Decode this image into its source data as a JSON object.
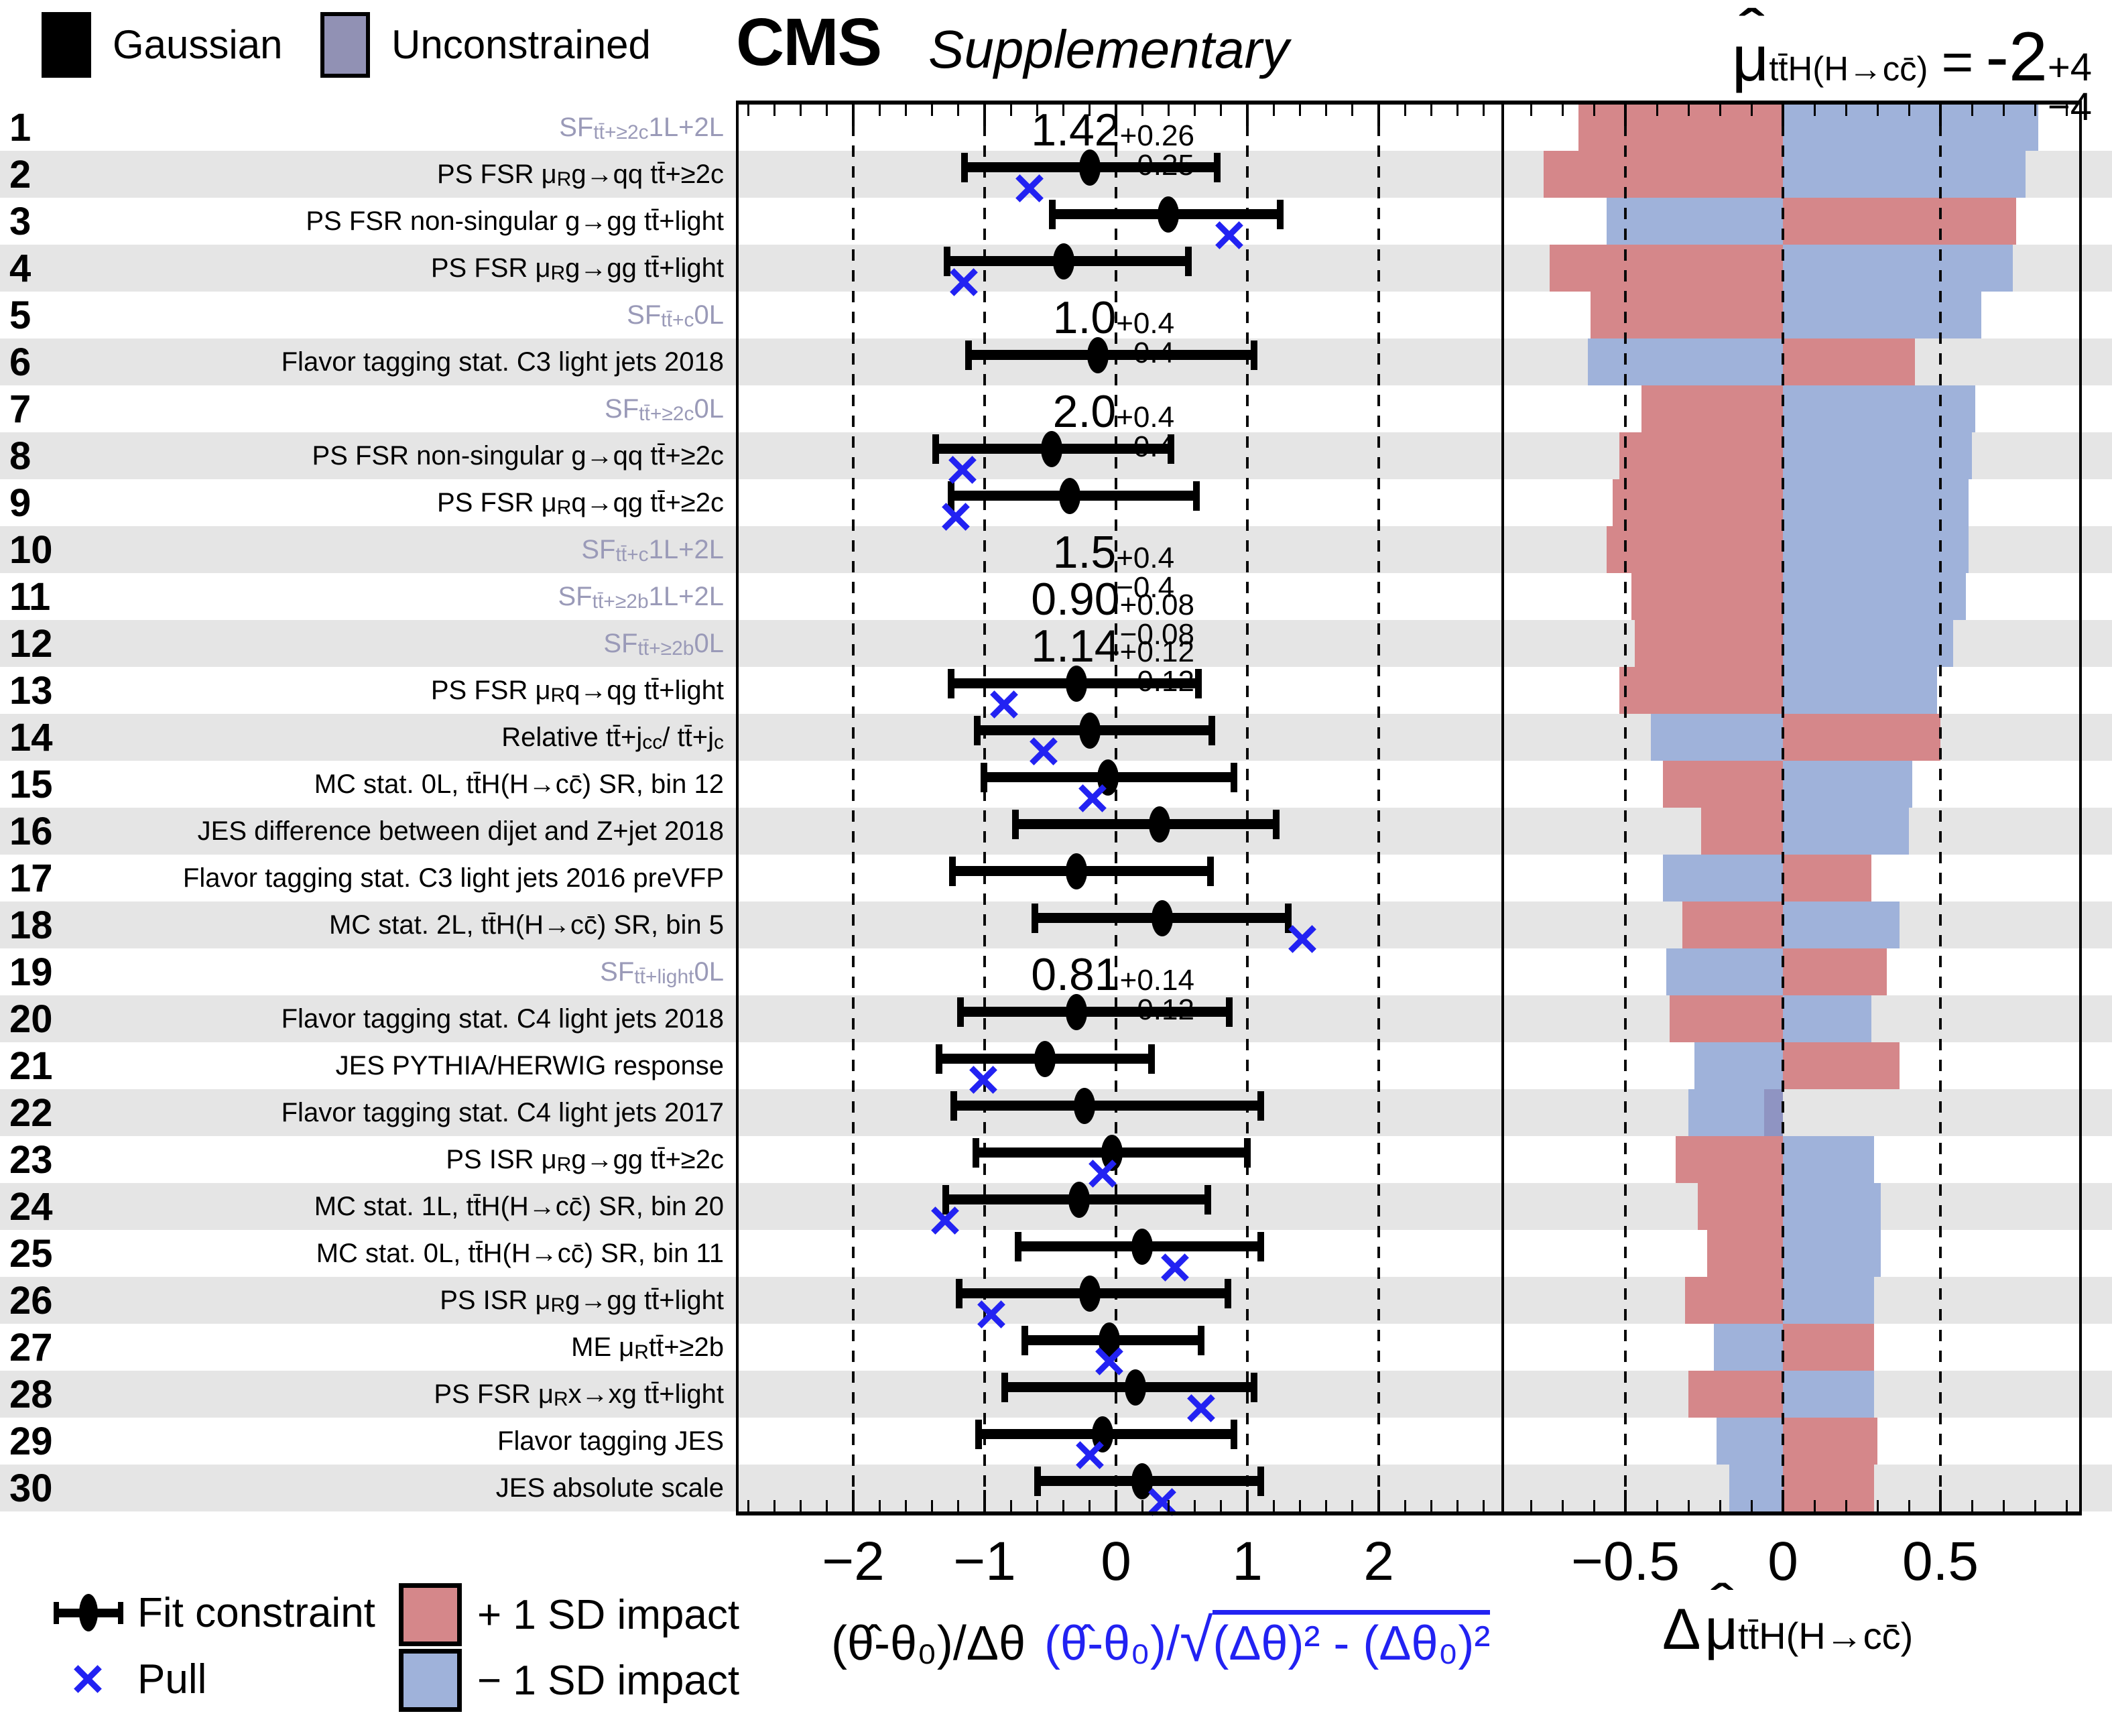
{
  "top_legend": [
    {
      "label": "Gaussian",
      "color": "#000000"
    },
    {
      "label": "Unconstrained",
      "color": "#9191b4"
    }
  ],
  "header": {
    "experiment": "CMS",
    "qualifier": "Supplementary"
  },
  "mu_result": {
    "mu": "μ",
    "subscript": "tt̄H(H→cc̄)",
    "equals": "=",
    "value": "-2",
    "err_up": "+4",
    "err_down": "−4"
  },
  "bottom_legend": {
    "fit_constraint": "Fit constraint",
    "pull": "Pull",
    "plus_impact": "+ 1 SD impact",
    "minus_impact": "− 1 SD impact"
  },
  "colors": {
    "plus_impact": "#d5878a",
    "minus_impact": "#9fb2da",
    "overlap_impact": "#8f94c2",
    "unconstrained": "#9191b4",
    "pull_marker": "#2222f2",
    "stripe": "#e5e5e5",
    "sf_label": "#9a9ab8"
  },
  "chart_data": {
    "type": "pulls-impacts",
    "title": "CMS Supplementary nuisance-parameter pulls and impacts for μ(ttH, H→cc) = -2 +4/-4",
    "pull_axis": {
      "label_black": "(θ̂-θ₀)/Δθ",
      "label_blue_pre": "(θ̂-θ₀)/",
      "label_blue_radicand": "(Δθ)² - (Δθ₀)²",
      "ticks": [
        -2,
        -1,
        0,
        1,
        2
      ],
      "minor_step": 0.2,
      "range": [
        -2.88,
        2.94
      ],
      "grid": "dashed"
    },
    "impact_axis": {
      "label": "Δμ̂ tt̄H(H→cc̄)",
      "ticks": [
        -0.5,
        0,
        0.5
      ],
      "tick_labels": [
        "−0.5",
        "0",
        "0.5"
      ],
      "minor_step": 0.1,
      "range": [
        -0.89,
        0.94
      ],
      "grid": "dashed"
    },
    "rows": [
      {
        "n": 1,
        "label_html": "SF <sub>tt̄+≥2c</sub> 1L+2L",
        "unconstrained": true,
        "sf": {
          "value": "1.42",
          "up": "+0.26",
          "down": "−0.25"
        },
        "pull": null,
        "impact": {
          "plus": -0.65,
          "minus": 0.81
        }
      },
      {
        "n": 2,
        "label_html": "PS FSR μ<sub>R</sub> g→qq tt̄+≥2c",
        "unconstrained": false,
        "sf": null,
        "pull": {
          "center": -0.2,
          "lo": -1.16,
          "hi": 0.77,
          "x": -0.66
        },
        "impact": {
          "plus": -0.76,
          "minus": 0.77
        }
      },
      {
        "n": 3,
        "label_html": "PS FSR non-singular g→gg tt̄+light",
        "unconstrained": false,
        "sf": null,
        "pull": {
          "center": 0.4,
          "lo": -0.49,
          "hi": 1.25,
          "x": 0.86
        },
        "impact": {
          "plus": 0.74,
          "minus": -0.56
        }
      },
      {
        "n": 4,
        "label_html": "PS FSR μ<sub>R</sub> g→gg tt̄+light",
        "unconstrained": false,
        "sf": null,
        "pull": {
          "center": -0.4,
          "lo": -1.29,
          "hi": 0.55,
          "x": -1.16
        },
        "impact": {
          "plus": -0.74,
          "minus": 0.73
        }
      },
      {
        "n": 5,
        "label_html": "SF <sub>tt̄+c</sub> 0L",
        "unconstrained": true,
        "sf": {
          "value": "1.0",
          "up": "+0.4",
          "down": "−0.4"
        },
        "pull": null,
        "impact": {
          "plus": -0.61,
          "minus": 0.63
        }
      },
      {
        "n": 6,
        "label_html": "Flavor tagging stat. C3 light jets 2018",
        "unconstrained": false,
        "sf": null,
        "pull": {
          "center": -0.14,
          "lo": -1.13,
          "hi": 1.05,
          "x": null
        },
        "impact": {
          "plus": 0.42,
          "minus": -0.62
        }
      },
      {
        "n": 7,
        "label_html": "SF <sub>tt̄+≥2c</sub> 0L",
        "unconstrained": true,
        "sf": {
          "value": "2.0",
          "up": "+0.4",
          "down": "−0.4"
        },
        "pull": null,
        "impact": {
          "plus": -0.45,
          "minus": 0.61
        }
      },
      {
        "n": 8,
        "label_html": "PS FSR non-singular g→qq tt̄+≥2c",
        "unconstrained": false,
        "sf": null,
        "pull": {
          "center": -0.49,
          "lo": -1.38,
          "hi": 0.42,
          "x": -1.17
        },
        "impact": {
          "plus": -0.52,
          "minus": 0.6
        }
      },
      {
        "n": 9,
        "label_html": "PS FSR μ<sub>R</sub> q→qg tt̄+≥2c",
        "unconstrained": false,
        "sf": null,
        "pull": {
          "center": -0.35,
          "lo": -1.26,
          "hi": 0.61,
          "x": -1.22
        },
        "impact": {
          "plus": -0.54,
          "minus": 0.59
        }
      },
      {
        "n": 10,
        "label_html": "SF <sub>tt̄+c</sub> 1L+2L",
        "unconstrained": true,
        "sf": {
          "value": "1.5",
          "up": "+0.4",
          "down": "−0.4"
        },
        "pull": null,
        "impact": {
          "plus": -0.56,
          "minus": 0.59
        }
      },
      {
        "n": 11,
        "label_html": "SF <sub>tt̄+≥2b</sub> 1L+2L",
        "unconstrained": true,
        "sf": {
          "value": "0.90",
          "up": "+0.08",
          "down": "−0.08"
        },
        "pull": null,
        "impact": {
          "plus": -0.48,
          "minus": 0.58
        }
      },
      {
        "n": 12,
        "label_html": "SF <sub>tt̄+≥2b</sub> 0L",
        "unconstrained": true,
        "sf": {
          "value": "1.14",
          "up": "+0.12",
          "down": "−0.12"
        },
        "pull": null,
        "impact": {
          "plus": -0.47,
          "minus": 0.54
        }
      },
      {
        "n": 13,
        "label_html": "PS FSR μ<sub>R</sub> q→qg tt̄+light",
        "unconstrained": false,
        "sf": null,
        "pull": {
          "center": -0.3,
          "lo": -1.26,
          "hi": 0.63,
          "x": -0.85
        },
        "impact": {
          "plus": -0.52,
          "minus": 0.49
        }
      },
      {
        "n": 14,
        "label_html": "Relative tt̄+j<sub>cc</sub> / tt̄+j<sub>c</sub>",
        "unconstrained": false,
        "sf": null,
        "pull": {
          "center": -0.2,
          "lo": -1.06,
          "hi": 0.73,
          "x": -0.55
        },
        "impact": {
          "plus": 0.5,
          "minus": -0.42
        }
      },
      {
        "n": 15,
        "label_html": "MC stat. 0L, tt̄H(H→cc̄) SR, bin 12",
        "unconstrained": false,
        "sf": null,
        "pull": {
          "center": -0.06,
          "lo": -1.01,
          "hi": 0.9,
          "x": -0.18
        },
        "impact": {
          "plus": -0.38,
          "minus": 0.41
        }
      },
      {
        "n": 16,
        "label_html": "JES difference between dijet and Z+jet 2018",
        "unconstrained": false,
        "sf": null,
        "pull": {
          "center": 0.33,
          "lo": -0.77,
          "hi": 1.22,
          "x": null
        },
        "impact": {
          "plus": -0.26,
          "minus": 0.4
        }
      },
      {
        "n": 17,
        "label_html": "Flavor tagging stat. C3 light jets 2016 preVFP",
        "unconstrained": false,
        "sf": null,
        "pull": {
          "center": -0.3,
          "lo": -1.25,
          "hi": 0.72,
          "x": null
        },
        "impact": {
          "plus": 0.28,
          "minus": -0.38
        }
      },
      {
        "n": 18,
        "label_html": "MC stat. 2L, tt̄H(H→cc̄) SR, bin 5",
        "unconstrained": false,
        "sf": null,
        "pull": {
          "center": 0.35,
          "lo": -0.62,
          "hi": 1.31,
          "x": 1.42
        },
        "impact": {
          "plus": -0.32,
          "minus": 0.37
        }
      },
      {
        "n": 19,
        "label_html": "SF <sub>tt̄+light</sub> 0L",
        "unconstrained": true,
        "sf": {
          "value": "0.81",
          "up": "+0.14",
          "down": "−0.12"
        },
        "pull": null,
        "impact": {
          "plus": 0.33,
          "minus": -0.37
        }
      },
      {
        "n": 20,
        "label_html": "Flavor tagging stat. C4 light jets 2018",
        "unconstrained": false,
        "sf": null,
        "pull": {
          "center": -0.3,
          "lo": -1.19,
          "hi": 0.86,
          "x": null
        },
        "impact": {
          "plus": -0.36,
          "minus": 0.28
        }
      },
      {
        "n": 21,
        "label_html": "JES PYTHIA/HERWIG response",
        "unconstrained": false,
        "sf": null,
        "pull": {
          "center": -0.54,
          "lo": -1.35,
          "hi": 0.27,
          "x": -1.01
        },
        "impact": {
          "plus": 0.37,
          "minus": -0.28
        }
      },
      {
        "n": 22,
        "label_html": "Flavor tagging stat. C4 light jets 2017",
        "unconstrained": false,
        "sf": null,
        "pull": {
          "center": -0.24,
          "lo": -1.24,
          "hi": 1.1,
          "x": null
        },
        "impact": {
          "plus": -0.06,
          "minus": -0.3
        }
      },
      {
        "n": 23,
        "label_html": "PS ISR μ<sub>R</sub> g→gg tt̄+≥2c",
        "unconstrained": false,
        "sf": null,
        "pull": {
          "center": -0.03,
          "lo": -1.07,
          "hi": 1.0,
          "x": -0.1
        },
        "impact": {
          "plus": -0.34,
          "minus": 0.29
        }
      },
      {
        "n": 24,
        "label_html": "MC stat. 1L, tt̄H(H→cc̄) SR, bin 20",
        "unconstrained": false,
        "sf": null,
        "pull": {
          "center": -0.28,
          "lo": -1.3,
          "hi": 0.7,
          "x": -1.3
        },
        "impact": {
          "plus": -0.27,
          "minus": 0.31
        }
      },
      {
        "n": 25,
        "label_html": "MC stat. 0L, tt̄H(H→cc̄) SR, bin 11",
        "unconstrained": false,
        "sf": null,
        "pull": {
          "center": 0.2,
          "lo": -0.75,
          "hi": 1.1,
          "x": 0.45
        },
        "impact": {
          "plus": -0.24,
          "minus": 0.31
        }
      },
      {
        "n": 26,
        "label_html": "PS ISR μ<sub>R</sub> g→gg tt̄+light",
        "unconstrained": false,
        "sf": null,
        "pull": {
          "center": -0.2,
          "lo": -1.2,
          "hi": 0.85,
          "x": -0.95
        },
        "impact": {
          "plus": -0.31,
          "minus": 0.29
        }
      },
      {
        "n": 27,
        "label_html": "ME μ<sub>R</sub> tt̄+≥2b",
        "unconstrained": false,
        "sf": null,
        "pull": {
          "center": -0.05,
          "lo": -0.7,
          "hi": 0.65,
          "x": -0.05
        },
        "impact": {
          "plus": 0.29,
          "minus": -0.22
        }
      },
      {
        "n": 28,
        "label_html": "PS FSR μ<sub>R</sub> x→xg tt̄+light",
        "unconstrained": false,
        "sf": null,
        "pull": {
          "center": 0.15,
          "lo": -0.85,
          "hi": 1.05,
          "x": 0.65
        },
        "impact": {
          "plus": -0.3,
          "minus": 0.29
        }
      },
      {
        "n": 29,
        "label_html": "Flavor tagging JES",
        "unconstrained": false,
        "sf": null,
        "pull": {
          "center": -0.1,
          "lo": -1.05,
          "hi": 0.9,
          "x": -0.2
        },
        "impact": {
          "plus": 0.3,
          "minus": -0.21
        }
      },
      {
        "n": 30,
        "label_html": "JES absolute scale",
        "unconstrained": false,
        "sf": null,
        "pull": {
          "center": 0.2,
          "lo": -0.6,
          "hi": 1.1,
          "x": 0.35
        },
        "impact": {
          "plus": 0.29,
          "minus": -0.17
        }
      }
    ]
  }
}
